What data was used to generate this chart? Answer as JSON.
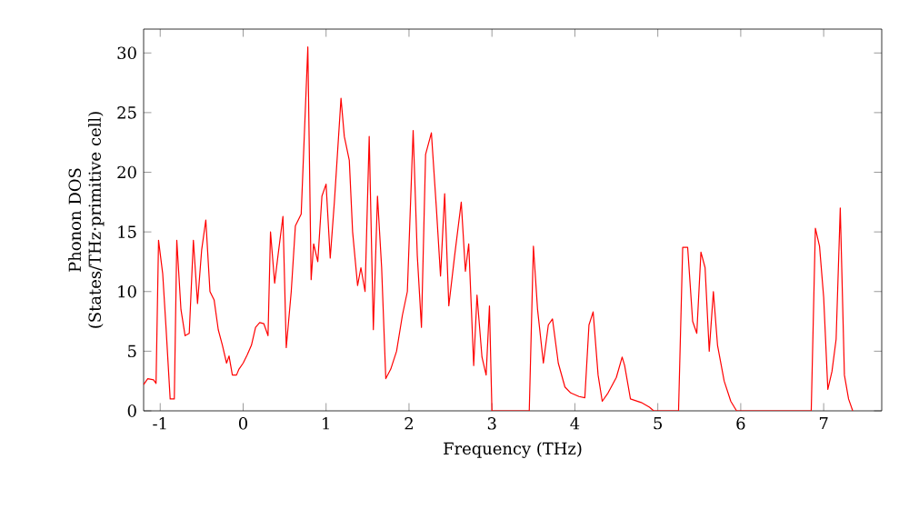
{
  "chart_data": {
    "type": "line",
    "xlabel": "Frequency (THz)",
    "ylabel": "Phonon DOS (States/THz·primitive cell)",
    "xlim": [
      -1.2,
      7.7
    ],
    "ylim": [
      0,
      32
    ],
    "xticks": [
      -1,
      0,
      1,
      2,
      3,
      4,
      5,
      6,
      7
    ],
    "yticks": [
      0,
      5,
      10,
      15,
      20,
      25,
      30
    ],
    "grid": false,
    "marker": "none",
    "line_style": "solid",
    "series": [
      {
        "color": "#ff0000",
        "x": [
          -1.2,
          -1.15,
          -1.08,
          -1.05,
          -1.02,
          -0.97,
          -0.93,
          -0.88,
          -0.83,
          -0.8,
          -0.75,
          -0.7,
          -0.65,
          -0.6,
          -0.55,
          -0.5,
          -0.45,
          -0.4,
          -0.35,
          -0.3,
          -0.25,
          -0.2,
          -0.17,
          -0.13,
          -0.08,
          -0.05,
          0,
          0.05,
          0.1,
          0.15,
          0.2,
          0.25,
          0.3,
          0.33,
          0.38,
          0.42,
          0.48,
          0.52,
          0.58,
          0.63,
          0.7,
          0.78,
          0.82,
          0.85,
          0.9,
          0.95,
          1.0,
          1.05,
          1.1,
          1.18,
          1.22,
          1.28,
          1.32,
          1.38,
          1.42,
          1.47,
          1.52,
          1.57,
          1.62,
          1.67,
          1.72,
          1.78,
          1.85,
          1.92,
          1.98,
          2.05,
          2.1,
          2.15,
          2.2,
          2.27,
          2.33,
          2.38,
          2.43,
          2.48,
          2.55,
          2.63,
          2.68,
          2.72,
          2.78,
          2.82,
          2.88,
          2.93,
          2.97,
          3.0,
          3.45,
          3.5,
          3.55,
          3.62,
          3.68,
          3.73,
          3.8,
          3.88,
          3.95,
          4.05,
          4.12,
          4.17,
          4.22,
          4.28,
          4.33,
          4.4,
          4.5,
          4.57,
          4.6,
          4.67,
          4.8,
          4.9,
          4.95,
          5.25,
          5.3,
          5.36,
          5.42,
          5.47,
          5.52,
          5.57,
          5.62,
          5.67,
          5.72,
          5.8,
          5.88,
          5.95,
          6.85,
          6.9,
          6.95,
          7.0,
          7.05,
          7.1,
          7.15,
          7.2,
          7.25,
          7.3,
          7.35
        ],
        "values": [
          2.2,
          2.7,
          2.6,
          2.3,
          14.3,
          11.5,
          7,
          1,
          1,
          14.3,
          8.5,
          6.3,
          6.5,
          14.3,
          9,
          13.5,
          16,
          10,
          9.3,
          6.8,
          5.5,
          4,
          4.6,
          3,
          3,
          3.5,
          4,
          4.7,
          5.5,
          7,
          7.4,
          7.3,
          6.3,
          15,
          10.7,
          13,
          16.3,
          5.3,
          10,
          15.5,
          16.5,
          30.5,
          11,
          14,
          12.5,
          18,
          19,
          12.8,
          17.5,
          26.2,
          23,
          21,
          15,
          10.5,
          12,
          10,
          23,
          6.8,
          18,
          12,
          2.7,
          3.5,
          5,
          8,
          10,
          23.5,
          13,
          7,
          21.5,
          23.3,
          17,
          11.3,
          18.2,
          8.8,
          13,
          17.5,
          11.7,
          14,
          3.8,
          9.7,
          4.5,
          3,
          8.8,
          0,
          0,
          13.8,
          8.5,
          4,
          7.2,
          7.7,
          4,
          2,
          1.5,
          1.2,
          1.1,
          7.2,
          8.3,
          3,
          0.8,
          1.5,
          2.8,
          4.5,
          3.8,
          1,
          0.7,
          0.3,
          0,
          0,
          13.7,
          13.7,
          7.5,
          6.5,
          13.3,
          12,
          5,
          10,
          5.5,
          2.5,
          0.8,
          0,
          0,
          15.3,
          13.8,
          9.5,
          1.8,
          3.3,
          6,
          17,
          3,
          1,
          0
        ]
      }
    ]
  }
}
